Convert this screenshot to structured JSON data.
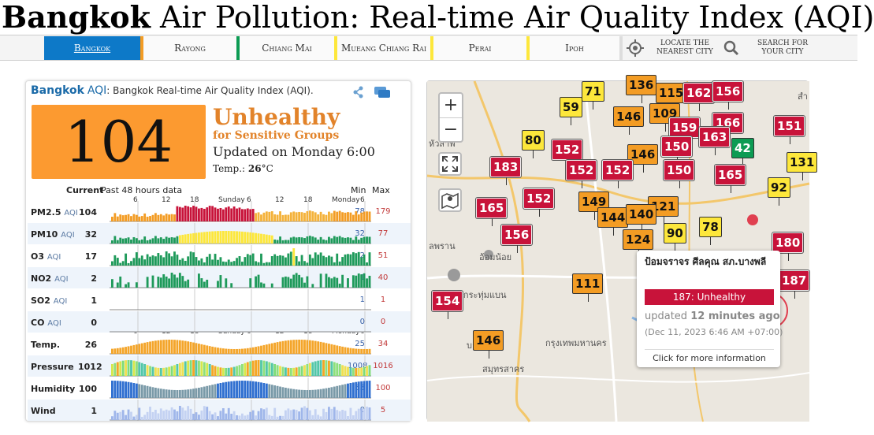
{
  "header": {
    "title_city": "Bangkok",
    "title_rest": " Air Pollution: Real-time Air Quality Index (AQI)"
  },
  "nav": {
    "tabs": [
      {
        "label": "Bangkok",
        "color": "#0d79c8"
      },
      {
        "label": "Rayong",
        "color": "#f39c24"
      },
      {
        "label": "Chiang Mai",
        "color": "#0c9b53"
      },
      {
        "label": "Mueang Chiang Rai",
        "color": "#fde73b"
      },
      {
        "label": "Perai",
        "color": "#fde73b"
      },
      {
        "label": "Ipoh",
        "color": "#fde73b"
      }
    ],
    "locate_label": "Locate the nearest city",
    "search_label": "Search for your city"
  },
  "panel": {
    "city": "Bangkok",
    "aqi_word": "AQI",
    "subtitle": ": Bangkok Real-time Air Quality Index (AQI).",
    "aqi_value": "104",
    "aqi_color": "#fc9a30",
    "status": "Unhealthy",
    "status_sub": "for Sensitive Groups",
    "updated": "Updated on Monday 6:00",
    "temp_label": "Temp.:",
    "temp_value": "26",
    "temp_unit": "°C",
    "header_current": "Current",
    "header_past": "Past 48 hours data",
    "header_min": "Min",
    "header_max": "Max",
    "ticks_top": [
      "6",
      "12",
      "18",
      "Sunday",
      "6",
      "12",
      "18",
      "Monday",
      "6"
    ],
    "ticks_mid": [
      "6",
      "12",
      "18",
      "Sunday",
      "6",
      "12",
      "18",
      "Monday",
      "6"
    ],
    "rows": [
      {
        "name": "PM2.5",
        "sub": "AQI",
        "cur": "104",
        "min": "78",
        "max": "179",
        "kind": "pm25"
      },
      {
        "name": "PM10",
        "sub": "AQI",
        "cur": "32",
        "min": "32",
        "max": "77",
        "kind": "pm10"
      },
      {
        "name": "O3",
        "sub": "AQI",
        "cur": "17",
        "min": "2",
        "max": "51",
        "kind": "o3"
      },
      {
        "name": "NO2",
        "sub": "AQI",
        "cur": "2",
        "min": "1",
        "max": "40",
        "kind": "no2"
      },
      {
        "name": "SO2",
        "sub": "AQI",
        "cur": "1",
        "min": "1",
        "max": "1",
        "kind": "empty"
      },
      {
        "name": "CO",
        "sub": "AQI",
        "cur": "0",
        "min": "0",
        "max": "0",
        "kind": "empty"
      },
      {
        "name": "Temp.",
        "sub": "",
        "cur": "26",
        "min": "25",
        "max": "34",
        "kind": "temp"
      },
      {
        "name": "Pressure",
        "sub": "",
        "cur": "1012",
        "min": "1008",
        "max": "1016",
        "kind": "pressure"
      },
      {
        "name": "Humidity",
        "sub": "",
        "cur": "100",
        "min": "55",
        "max": "100",
        "kind": "humidity"
      },
      {
        "name": "Wind",
        "sub": "",
        "cur": "1",
        "min": "0",
        "max": "5",
        "kind": "wind"
      }
    ]
  },
  "map": {
    "zoom_in": "+",
    "zoom_out": "−",
    "markers": [
      {
        "v": "71",
        "c": "y"
      },
      {
        "v": "136",
        "c": "o"
      },
      {
        "v": "115",
        "c": "o"
      },
      {
        "v": "162",
        "c": "r"
      },
      {
        "v": "156",
        "c": "r"
      },
      {
        "v": "59",
        "c": "y"
      },
      {
        "v": "146",
        "c": "o"
      },
      {
        "v": "109",
        "c": "o"
      },
      {
        "v": "166",
        "c": "r"
      },
      {
        "v": "151",
        "c": "r"
      },
      {
        "v": "159",
        "c": "r"
      },
      {
        "v": "163",
        "c": "r"
      },
      {
        "v": "80",
        "c": "y"
      },
      {
        "v": "150",
        "c": "r"
      },
      {
        "v": "42",
        "c": "g"
      },
      {
        "v": "152",
        "c": "r"
      },
      {
        "v": "146",
        "c": "o"
      },
      {
        "v": "183",
        "c": "r"
      },
      {
        "v": "152",
        "c": "r"
      },
      {
        "v": "152",
        "c": "r"
      },
      {
        "v": "150",
        "c": "r"
      },
      {
        "v": "165",
        "c": "r"
      },
      {
        "v": "131",
        "c": "y"
      },
      {
        "v": "92",
        "c": "y"
      },
      {
        "v": "152",
        "c": "r"
      },
      {
        "v": "149",
        "c": "o"
      },
      {
        "v": "165",
        "c": "r"
      },
      {
        "v": "121",
        "c": "o"
      },
      {
        "v": "144",
        "c": "o"
      },
      {
        "v": "140",
        "c": "o"
      },
      {
        "v": "78",
        "c": "y"
      },
      {
        "v": "156",
        "c": "r"
      },
      {
        "v": "90",
        "c": "y"
      },
      {
        "v": "124",
        "c": "o"
      },
      {
        "v": "180",
        "c": "r"
      },
      {
        "v": "187",
        "c": "r"
      },
      {
        "v": "111",
        "c": "o"
      },
      {
        "v": "154",
        "c": "r"
      },
      {
        "v": "146",
        "c": "o"
      }
    ],
    "labels": {
      "l1": "หัวสาพ",
      "l2": "อ้อมน้อย",
      "l3": "ะกระทุ่มแบน",
      "l4": "กรุงเทพมหานคร",
      "l5": "สมุทรสาคร",
      "l6": "สำ",
      "l7": "บาง",
      "l8": "ลพราน"
    },
    "popup": {
      "station": "ป้อมจราจร ศีลคุณ สภ.บางพลี",
      "aqi": "187: Unhealthy",
      "updated_pre": "updated ",
      "updated_bold": "12 minutes ago",
      "date": "(Dec 11, 2023 6:46 AM +07:00)",
      "more": "Click for more information"
    }
  }
}
